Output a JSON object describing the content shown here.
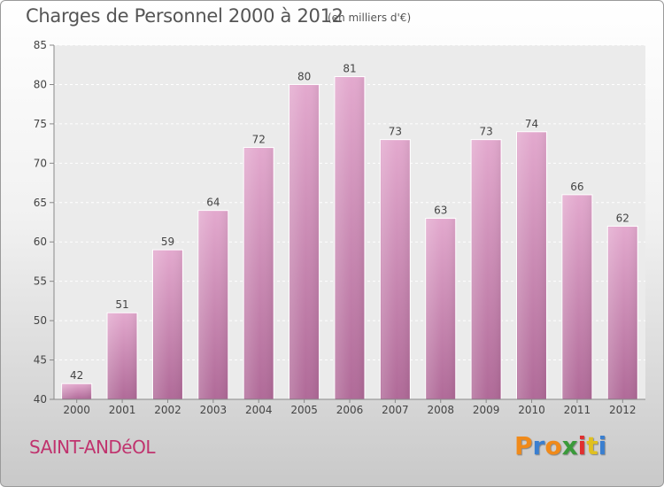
{
  "chart_data": {
    "type": "bar",
    "title": "Charges de Personnel 2000 à 2012",
    "subtitle": "(en milliers d'€)",
    "categories": [
      "2000",
      "2001",
      "2002",
      "2003",
      "2004",
      "2005",
      "2006",
      "2007",
      "2008",
      "2009",
      "2010",
      "2011",
      "2012"
    ],
    "values": [
      42,
      51,
      59,
      64,
      72,
      80,
      81,
      73,
      63,
      73,
      74,
      66,
      62
    ],
    "ylim": [
      40,
      85
    ],
    "yticks": [
      40,
      45,
      50,
      55,
      60,
      65,
      70,
      75,
      80,
      85
    ],
    "grid": true,
    "bar_color_top": "#e3a9ce",
    "bar_color_bottom": "#b06a98"
  },
  "footer": {
    "commune": "SAINT-ANDéOL"
  },
  "logo": {
    "letters": [
      "P",
      "r",
      "o",
      "x",
      "i",
      "t",
      "i"
    ],
    "colors": [
      "#f08a1a",
      "#3a7fd0",
      "#f08a1a",
      "#3a9a3a",
      "#e03030",
      "#e0c020",
      "#3a7fd0"
    ]
  }
}
